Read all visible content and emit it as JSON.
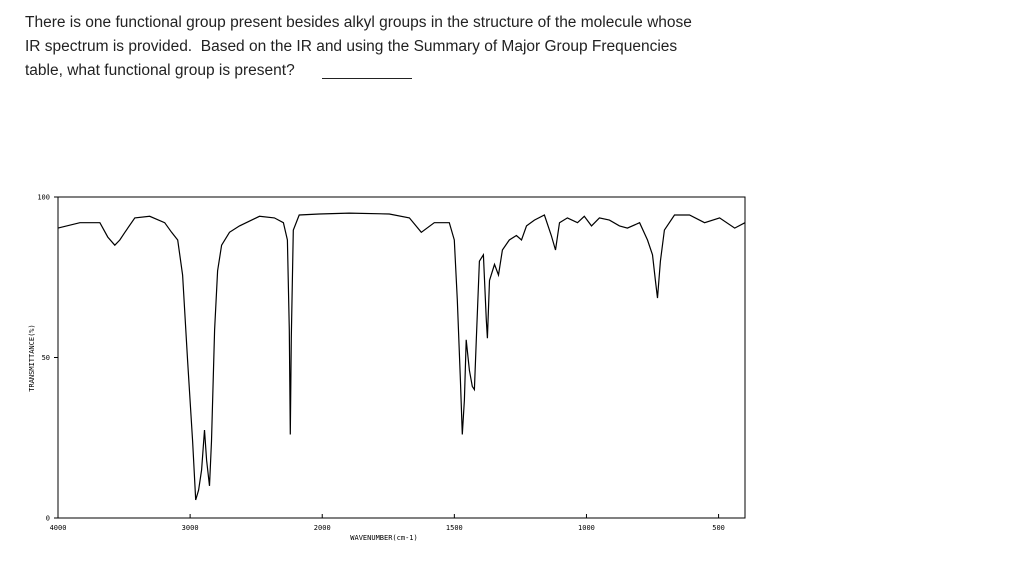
{
  "question": {
    "lines": [
      "There is one functional group present besides alkyl groups in the structure of the molecule whose",
      "IR spectrum is provided.  Based on the IR and using the Summary of Major Group Frequencies",
      "table, what functional group is present?"
    ]
  },
  "chart_data": {
    "type": "line",
    "x_label": "WAVENUMBER(cm-1)",
    "y_label": "TRANSMITTANCE(%)",
    "x": [
      4000,
      3834,
      3683,
      3623,
      3570,
      3532,
      3494,
      3419,
      3306,
      3192,
      3140,
      3094,
      3057,
      3019,
      2981,
      2958,
      2936,
      2913,
      2891,
      2875,
      2853,
      2838,
      2815,
      2792,
      2762,
      2702,
      2626,
      2475,
      2362,
      2294,
      2264,
      2249,
      2242,
      2234,
      2219,
      2174,
      2023,
      1898,
      1746,
      1670,
      1625,
      1576,
      1519,
      1500,
      1489,
      1477,
      1470,
      1462,
      1455,
      1443,
      1432,
      1424,
      1417,
      1405,
      1390,
      1379,
      1375,
      1367,
      1348,
      1333,
      1318,
      1292,
      1265,
      1246,
      1227,
      1197,
      1159,
      1133,
      1117,
      1102,
      1072,
      1034,
      1008,
      981,
      951,
      913,
      875,
      845,
      799,
      769,
      750,
      739,
      731,
      720,
      705,
      667,
      610,
      553,
      496,
      439,
      400
    ],
    "values": [
      90.3,
      92,
      92,
      87.5,
      85,
      86.6,
      89,
      93.5,
      94,
      92,
      89,
      86.6,
      75.7,
      49,
      24,
      5.6,
      8.7,
      15,
      27.4,
      18,
      10,
      24,
      58.6,
      77,
      85,
      89,
      91,
      94,
      93.5,
      92,
      86.6,
      58.6,
      26,
      56,
      89.7,
      94.4,
      94.7,
      95,
      94.7,
      93.5,
      89,
      92,
      92,
      86.6,
      68,
      43,
      26,
      36.8,
      55.5,
      46,
      41,
      40,
      55.5,
      80,
      82,
      61.7,
      56,
      74,
      79,
      75.7,
      83.5,
      86.6,
      88,
      86.6,
      91,
      92.8,
      94.4,
      88,
      83.5,
      92,
      93.5,
      92,
      94,
      91,
      93.5,
      92.8,
      91,
      90.3,
      92,
      86.6,
      82,
      74,
      68.5,
      80,
      89.7,
      94.4,
      94.4,
      92,
      93.5,
      90.3,
      92
    ],
    "color": "#000000",
    "xlim": [
      4000,
      400
    ],
    "xticks": [
      4000,
      3000,
      2000,
      1500,
      1000,
      500
    ],
    "ylim": [
      0,
      100
    ],
    "yticks": [
      0,
      50,
      100
    ]
  }
}
